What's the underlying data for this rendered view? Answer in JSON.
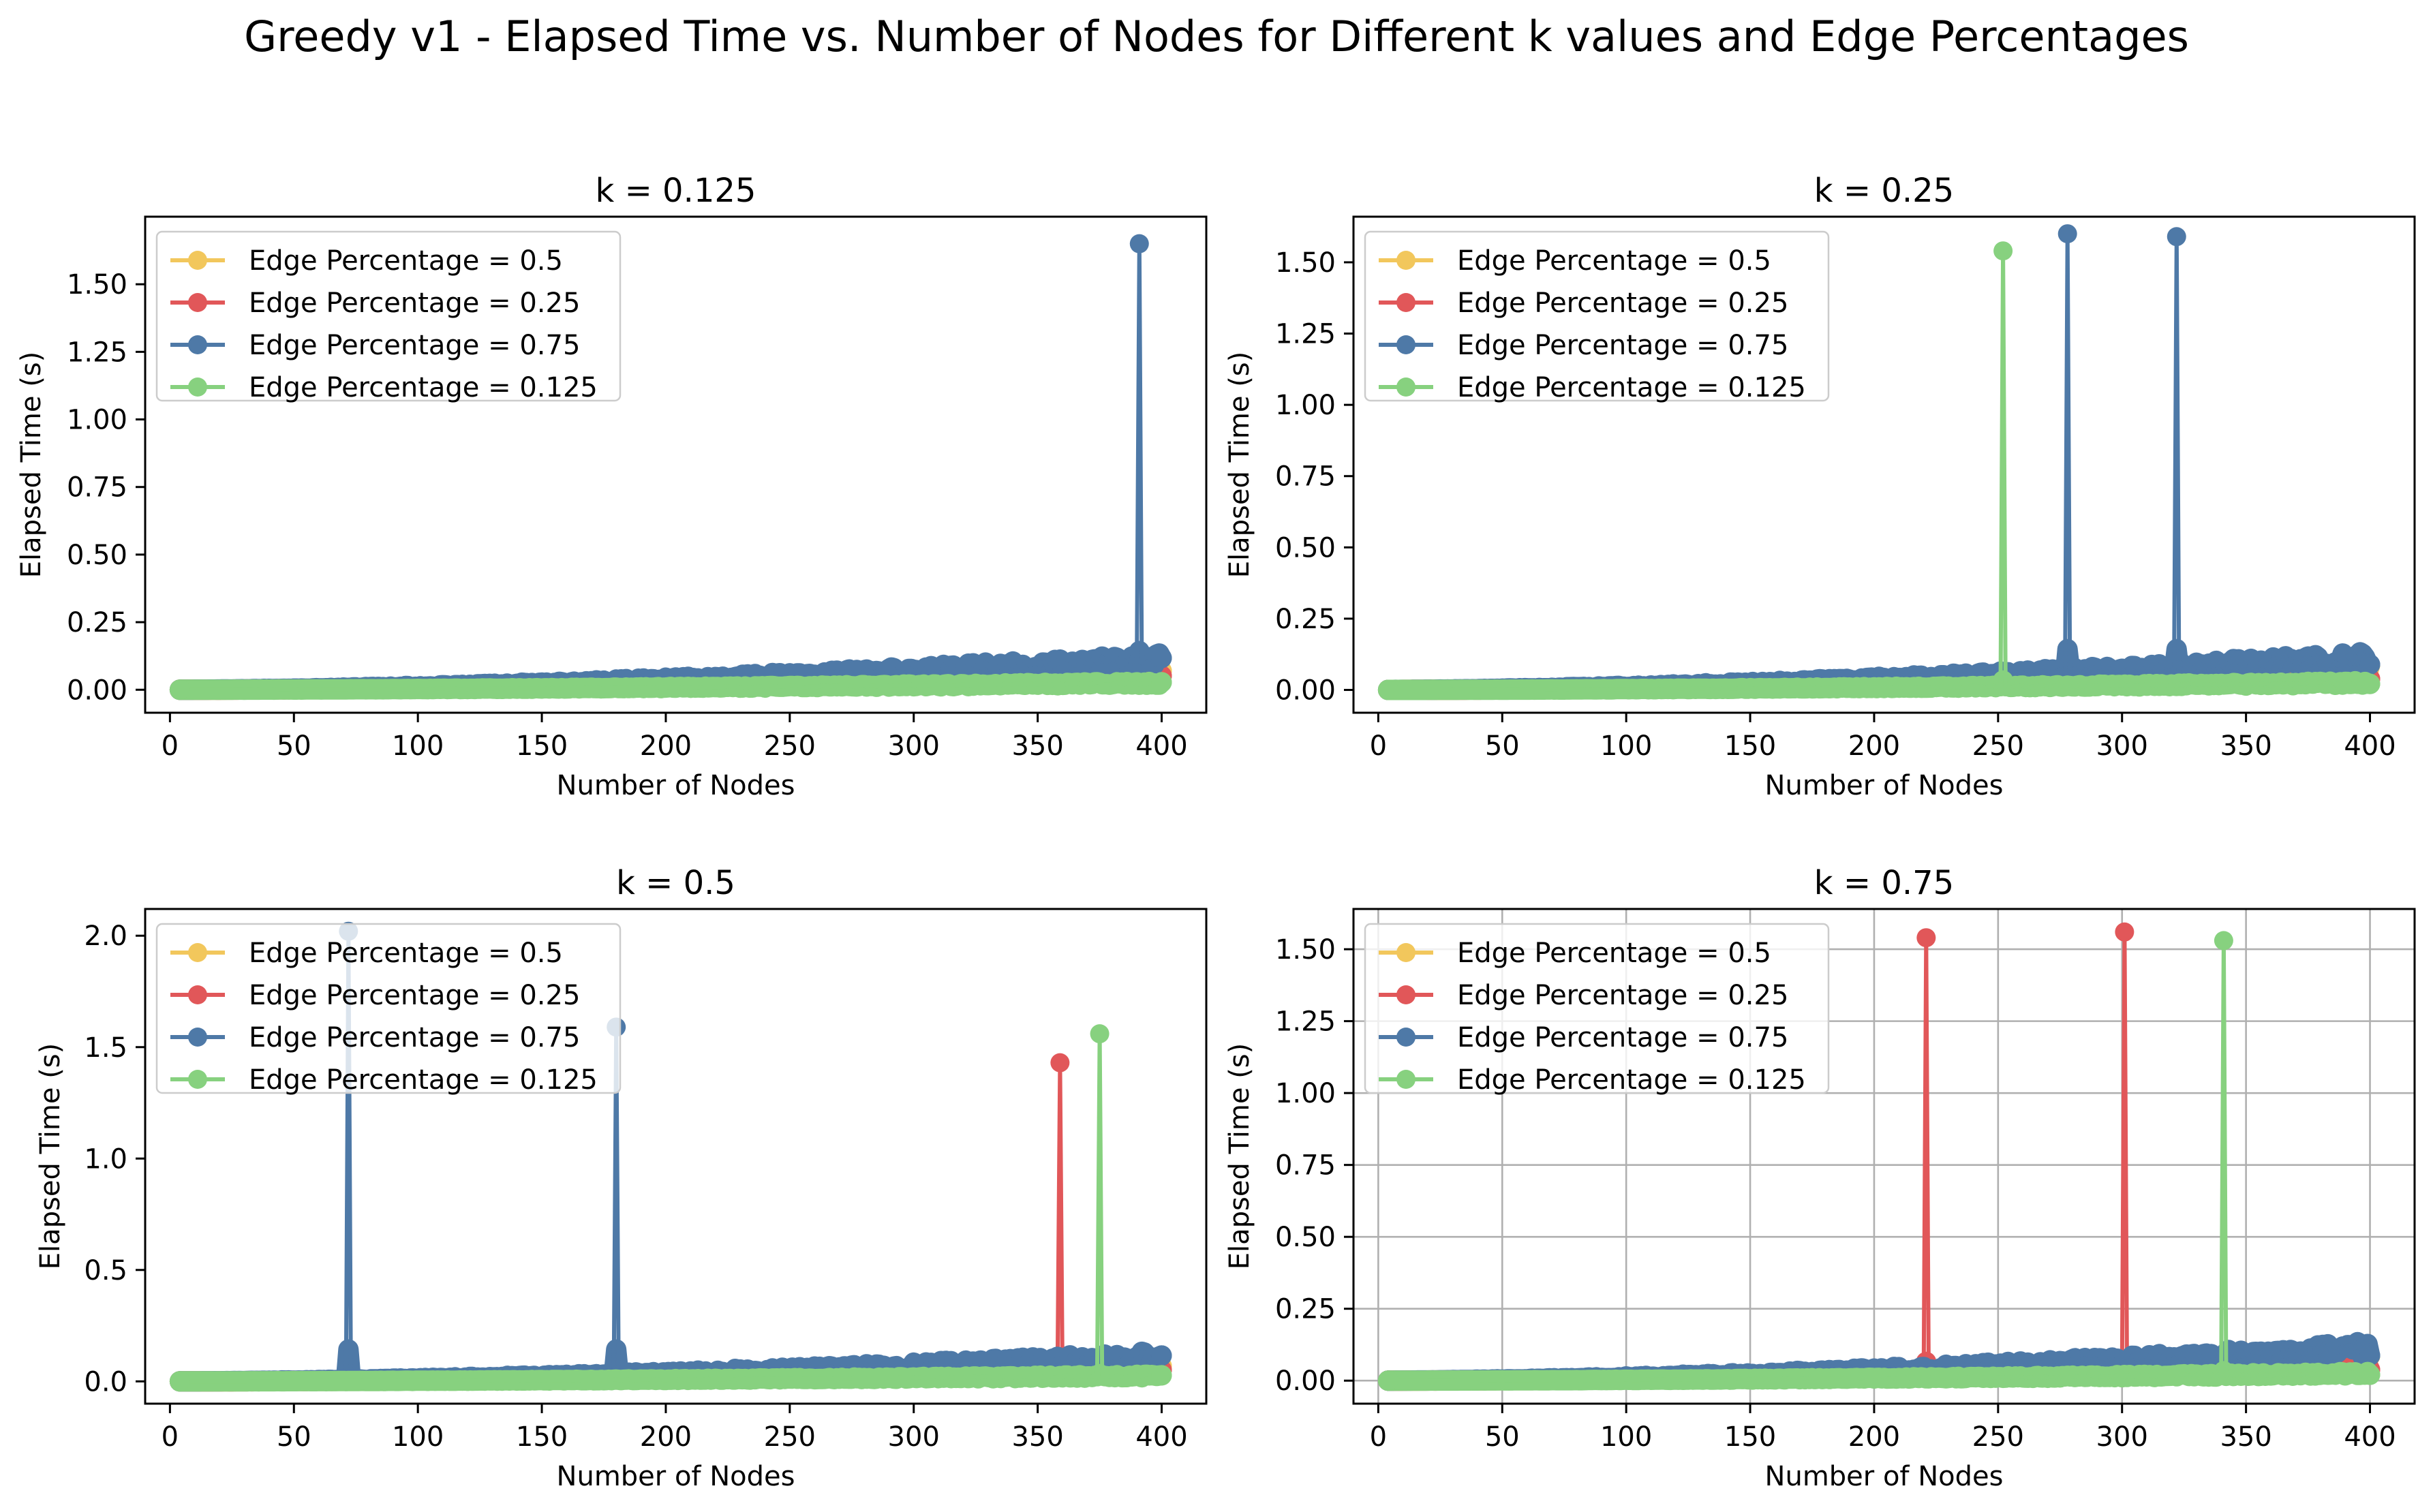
{
  "figure": {
    "title": "Greedy v1 - Elapsed Time vs. Number of Nodes for Different k values and Edge Percentages"
  },
  "series_colors": {
    "Edge Percentage = 0.5": "#f2c75c",
    "Edge Percentage = 0.25": "#e15759",
    "Edge Percentage = 0.75": "#4e79a7",
    "Edge Percentage = 0.125": "#87d17f"
  },
  "chart_data": [
    {
      "type": "line",
      "title": "k = 0.125",
      "xlabel": "Number of Nodes",
      "ylabel": "Elapsed Time (s)",
      "xlim": [
        -10,
        418
      ],
      "ylim": [
        -0.085,
        1.75
      ],
      "xticks": [
        0,
        50,
        100,
        150,
        200,
        250,
        300,
        350,
        400
      ],
      "yticks": [
        0.0,
        0.25,
        0.5,
        0.75,
        1.0,
        1.25,
        1.5
      ],
      "ytick_labels": [
        "0.00",
        "0.25",
        "0.50",
        "0.75",
        "1.00",
        "1.25",
        "1.50"
      ],
      "grid": false,
      "legend": "upper left",
      "x_range": [
        4,
        400
      ],
      "series": [
        {
          "name": "Edge Percentage = 0.5",
          "end_value": 0.07,
          "spikes": []
        },
        {
          "name": "Edge Percentage = 0.25",
          "end_value": 0.05,
          "spikes": []
        },
        {
          "name": "Edge Percentage = 0.75",
          "end_value": 0.11,
          "spikes": [
            {
              "x": 391,
              "y": 1.65
            }
          ]
        },
        {
          "name": "Edge Percentage = 0.125",
          "end_value": 0.025,
          "spikes": []
        }
      ]
    },
    {
      "type": "line",
      "title": "k = 0.25",
      "xlabel": "Number of Nodes",
      "ylabel": "Elapsed Time (s)",
      "xlim": [
        -10,
        418
      ],
      "ylim": [
        -0.08,
        1.66
      ],
      "xticks": [
        0,
        50,
        100,
        150,
        200,
        250,
        300,
        350,
        400
      ],
      "yticks": [
        0.0,
        0.25,
        0.5,
        0.75,
        1.0,
        1.25,
        1.5
      ],
      "ytick_labels": [
        "0.00",
        "0.25",
        "0.50",
        "0.75",
        "1.00",
        "1.25",
        "1.50"
      ],
      "grid": false,
      "legend": "upper left",
      "x_range": [
        4,
        400
      ],
      "series": [
        {
          "name": "Edge Percentage = 0.5",
          "end_value": 0.07,
          "spikes": []
        },
        {
          "name": "Edge Percentage = 0.25",
          "end_value": 0.05,
          "spikes": []
        },
        {
          "name": "Edge Percentage = 0.75",
          "end_value": 0.11,
          "spikes": [
            {
              "x": 278,
              "y": 1.6
            },
            {
              "x": 322,
              "y": 1.59
            }
          ]
        },
        {
          "name": "Edge Percentage = 0.125",
          "end_value": 0.025,
          "spikes": [
            {
              "x": 252,
              "y": 1.54
            }
          ]
        }
      ]
    },
    {
      "type": "line",
      "title": "k = 0.5",
      "xlabel": "Number of Nodes",
      "ylabel": "Elapsed Time (s)",
      "xlim": [
        -10,
        418
      ],
      "ylim": [
        -0.1,
        2.12
      ],
      "xticks": [
        0,
        50,
        100,
        150,
        200,
        250,
        300,
        350,
        400
      ],
      "yticks": [
        0.0,
        0.5,
        1.0,
        1.5,
        2.0
      ],
      "ytick_labels": [
        "0.0",
        "0.5",
        "1.0",
        "1.5",
        "2.0"
      ],
      "grid": false,
      "legend": "upper left",
      "x_range": [
        4,
        400
      ],
      "series": [
        {
          "name": "Edge Percentage = 0.5",
          "end_value": 0.07,
          "spikes": []
        },
        {
          "name": "Edge Percentage = 0.25",
          "end_value": 0.05,
          "spikes": [
            {
              "x": 359,
              "y": 1.43
            }
          ]
        },
        {
          "name": "Edge Percentage = 0.75",
          "end_value": 0.11,
          "spikes": [
            {
              "x": 72,
              "y": 2.02
            },
            {
              "x": 180,
              "y": 1.59
            }
          ]
        },
        {
          "name": "Edge Percentage = 0.125",
          "end_value": 0.025,
          "spikes": [
            {
              "x": 375,
              "y": 1.56
            }
          ]
        }
      ]
    },
    {
      "type": "line",
      "title": "k = 0.75",
      "xlabel": "Number of Nodes",
      "ylabel": "Elapsed Time (s)",
      "xlim": [
        -10,
        418
      ],
      "ylim": [
        -0.08,
        1.64
      ],
      "xticks": [
        0,
        50,
        100,
        150,
        200,
        250,
        300,
        350,
        400
      ],
      "yticks": [
        0.0,
        0.25,
        0.5,
        0.75,
        1.0,
        1.25,
        1.5
      ],
      "ytick_labels": [
        "0.00",
        "0.25",
        "0.50",
        "0.75",
        "1.00",
        "1.25",
        "1.50"
      ],
      "grid": true,
      "legend": "upper left",
      "x_range": [
        4,
        400
      ],
      "series": [
        {
          "name": "Edge Percentage = 0.5",
          "end_value": 0.07,
          "spikes": []
        },
        {
          "name": "Edge Percentage = 0.25",
          "end_value": 0.05,
          "spikes": [
            {
              "x": 221,
              "y": 1.54
            },
            {
              "x": 301,
              "y": 1.56
            }
          ]
        },
        {
          "name": "Edge Percentage = 0.75",
          "end_value": 0.11,
          "spikes": []
        },
        {
          "name": "Edge Percentage = 0.125",
          "end_value": 0.025,
          "spikes": [
            {
              "x": 341,
              "y": 1.53
            }
          ]
        }
      ]
    }
  ]
}
